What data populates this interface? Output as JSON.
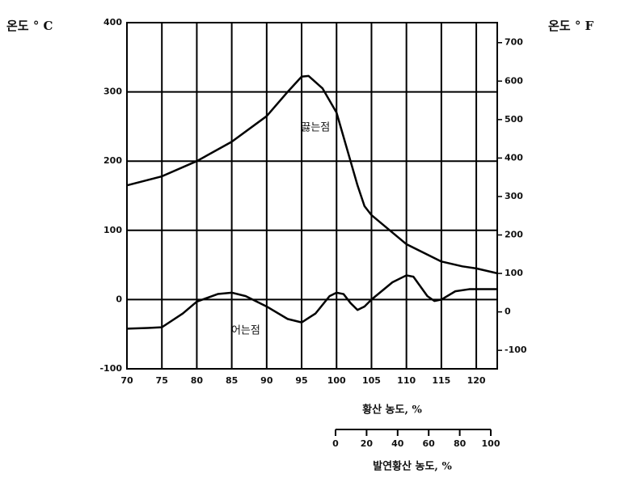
{
  "chart_data": {
    "type": "line",
    "y_label": "온도 ° C",
    "y2_label": "온도 ° F",
    "x_label": "황산  농도, %",
    "x2_label": "발연황산  농도, %",
    "xlim": [
      70,
      123
    ],
    "xticks": [
      70,
      75,
      80,
      85,
      90,
      95,
      100,
      105,
      110,
      115,
      120
    ],
    "ylim": [
      -100,
      400
    ],
    "yticks": [
      -100,
      0,
      100,
      200,
      300,
      400
    ],
    "y2lim": [
      -148,
      752
    ],
    "y2ticks": [
      -100,
      0,
      100,
      200,
      300,
      400,
      500,
      600,
      700
    ],
    "x2lim": [
      0,
      100
    ],
    "x2ticks": [
      0,
      20,
      40,
      60,
      80,
      100
    ],
    "grid": true,
    "series": [
      {
        "name": "끓는점",
        "color": "#000000",
        "x": [
          70,
          75,
          80,
          85,
          90,
          93,
          95,
          96,
          98,
          100,
          101,
          102,
          103,
          104,
          105,
          110,
          115,
          118,
          120,
          123
        ],
        "values": [
          165,
          178,
          200,
          228,
          265,
          300,
          322,
          323,
          305,
          270,
          235,
          200,
          165,
          135,
          122,
          80,
          55,
          48,
          45,
          38
        ]
      },
      {
        "name": "어는점",
        "color": "#000000",
        "x": [
          70,
          73,
          75,
          78,
          80,
          83,
          85,
          87,
          90,
          93,
          95,
          97,
          99,
          100,
          101,
          102,
          103,
          104,
          105,
          108,
          110,
          111,
          113,
          114,
          115,
          117,
          119,
          123
        ],
        "values": [
          -42,
          -41,
          -40,
          -20,
          -3,
          8,
          10,
          5,
          -10,
          -28,
          -33,
          -20,
          5,
          10,
          8,
          -5,
          -15,
          -10,
          0,
          25,
          35,
          33,
          5,
          -2,
          0,
          12,
          15,
          15
        ]
      }
    ]
  }
}
